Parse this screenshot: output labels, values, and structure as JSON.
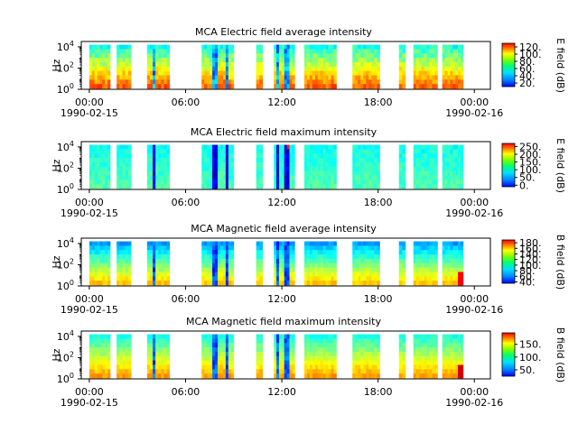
{
  "chart_data": [
    {
      "type": "heatmap",
      "title": "MCA  Electric field average intensity",
      "ylabel": "Hz",
      "colorbar_label": "E field (dB)",
      "colorbar_ticks": [
        "20.",
        "40.",
        "60.",
        "80.",
        "100.",
        "120."
      ],
      "colorbar_tick_values": [
        20,
        40,
        60,
        80,
        100,
        120
      ],
      "colorbar_range": [
        10,
        130
      ],
      "y_scale": "log",
      "y_ticks": [
        "10^0",
        "10^2",
        "10^4"
      ],
      "x_ticks": [
        "00:00",
        "06:00",
        "12:00",
        "18:00",
        "00:00"
      ],
      "x_tick_hours": [
        0,
        6,
        12,
        18,
        24
      ],
      "x_range_hours": [
        -0.5,
        25
      ],
      "start_date_label": "1990-02-15",
      "end_date_label": "1990-02-16",
      "data_segments_hours": [
        [
          0,
          1.3
        ],
        [
          1.7,
          2.6
        ],
        [
          3.6,
          5.0
        ],
        [
          7.0,
          9.0
        ],
        [
          10.4,
          10.8
        ],
        [
          11.5,
          12.8
        ],
        [
          13.4,
          15.4
        ],
        [
          16.4,
          18.1
        ],
        [
          19.3,
          19.7
        ],
        [
          20.2,
          21.7
        ],
        [
          22.0,
          23.3
        ]
      ],
      "level_profile": "e_avg"
    },
    {
      "type": "heatmap",
      "title": "MCA  Electric field maximum intensity",
      "ylabel": "Hz",
      "colorbar_label": "E field (dB)",
      "colorbar_ticks": [
        "0.",
        "50.",
        "100.",
        "150.",
        "200.",
        "250."
      ],
      "colorbar_tick_values": [
        0,
        50,
        100,
        150,
        200,
        250
      ],
      "colorbar_range": [
        -10,
        270
      ],
      "y_scale": "log",
      "y_ticks": [
        "10^0",
        "10^2",
        "10^4"
      ],
      "x_ticks": [
        "00:00",
        "06:00",
        "12:00",
        "18:00",
        "00:00"
      ],
      "x_tick_hours": [
        0,
        6,
        12,
        18,
        24
      ],
      "x_range_hours": [
        -0.5,
        25
      ],
      "start_date_label": "1990-02-15",
      "end_date_label": "1990-02-16",
      "data_segments_hours": [
        [
          0,
          1.3
        ],
        [
          1.7,
          2.6
        ],
        [
          3.6,
          5.0
        ],
        [
          7.0,
          9.0
        ],
        [
          10.4,
          10.8
        ],
        [
          11.5,
          12.8
        ],
        [
          13.4,
          15.4
        ],
        [
          16.4,
          18.1
        ],
        [
          19.3,
          19.7
        ],
        [
          20.2,
          21.7
        ],
        [
          22.0,
          23.3
        ]
      ],
      "level_profile": "e_max"
    },
    {
      "type": "heatmap",
      "title": "MCA  Magnetic field average intensity",
      "ylabel": "Hz",
      "colorbar_label": "B field (dB)",
      "colorbar_ticks": [
        "40.",
        "60.",
        "80.",
        "100.",
        "120.",
        "140.",
        "160.",
        "180."
      ],
      "colorbar_tick_values": [
        40,
        60,
        80,
        100,
        120,
        140,
        160,
        180
      ],
      "colorbar_range": [
        35,
        190
      ],
      "y_scale": "log",
      "y_ticks": [
        "10^0",
        "10^2",
        "10^4"
      ],
      "x_ticks": [
        "00:00",
        "06:00",
        "12:00",
        "18:00",
        "00:00"
      ],
      "x_tick_hours": [
        0,
        6,
        12,
        18,
        24
      ],
      "x_range_hours": [
        -0.5,
        25
      ],
      "start_date_label": "1990-02-15",
      "end_date_label": "1990-02-16",
      "data_segments_hours": [
        [
          0,
          1.3
        ],
        [
          1.7,
          2.6
        ],
        [
          3.6,
          5.0
        ],
        [
          7.0,
          9.0
        ],
        [
          10.4,
          10.8
        ],
        [
          11.5,
          12.8
        ],
        [
          13.4,
          15.4
        ],
        [
          16.4,
          18.1
        ],
        [
          19.3,
          19.7
        ],
        [
          20.2,
          21.7
        ],
        [
          22.0,
          23.3
        ]
      ],
      "level_profile": "b_avg"
    },
    {
      "type": "heatmap",
      "title": "MCA  Magnetic field maximum intensity",
      "ylabel": "Hz",
      "colorbar_label": "B field (dB)",
      "colorbar_ticks": [
        "50.",
        "100.",
        "150."
      ],
      "colorbar_tick_values": [
        50,
        100,
        150
      ],
      "colorbar_range": [
        25,
        195
      ],
      "y_scale": "log",
      "y_ticks": [
        "10^0",
        "10^2",
        "10^4"
      ],
      "x_ticks": [
        "00:00",
        "06:00",
        "12:00",
        "18:00",
        "00:00"
      ],
      "x_tick_hours": [
        0,
        6,
        12,
        18,
        24
      ],
      "x_range_hours": [
        -0.5,
        25
      ],
      "start_date_label": "1990-02-15",
      "end_date_label": "1990-02-16",
      "data_segments_hours": [
        [
          0,
          1.3
        ],
        [
          1.7,
          2.6
        ],
        [
          3.6,
          5.0
        ],
        [
          7.0,
          9.0
        ],
        [
          10.4,
          10.8
        ],
        [
          11.5,
          12.8
        ],
        [
          13.4,
          15.4
        ],
        [
          16.4,
          18.1
        ],
        [
          19.3,
          19.7
        ],
        [
          20.2,
          21.7
        ],
        [
          22.0,
          23.3
        ]
      ],
      "level_profile": "b_max"
    }
  ]
}
